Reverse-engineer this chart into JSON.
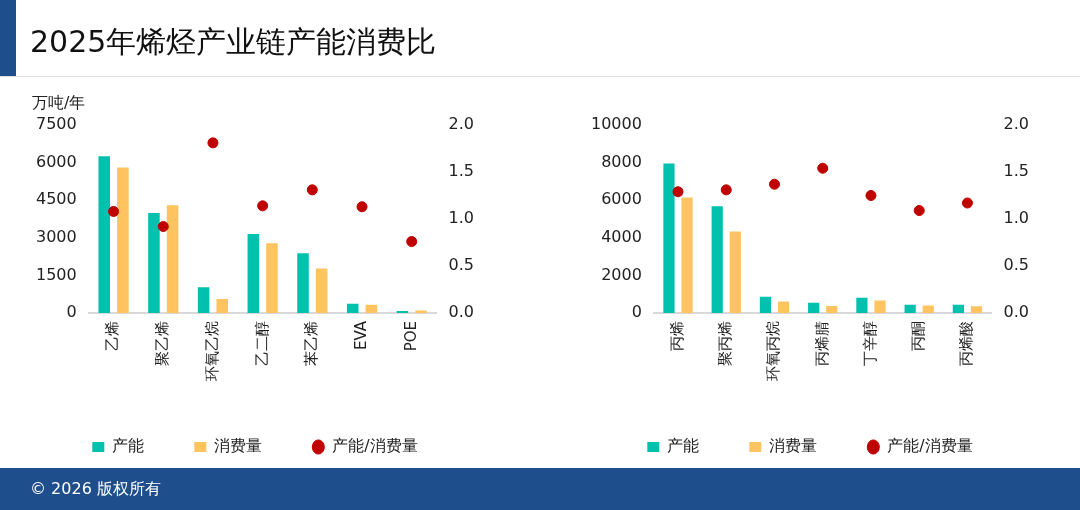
{
  "chart_data": [
    {
      "type": "bar",
      "title": "2025年烯烃产业链产能消费比",
      "ylabel": "万吨/年",
      "categories": [
        "乙烯",
        "聚乙烯",
        "环氧乙烷",
        "乙二醇",
        "苯乙烯",
        "EVA",
        "POE"
      ],
      "series": [
        {
          "name": "产能",
          "color": "#00c0ae",
          "values": [
            6250,
            3990,
            1030,
            3150,
            2380,
            370,
            80
          ]
        },
        {
          "name": "消费量",
          "color": "#ffc35f",
          "values": [
            5800,
            4300,
            560,
            2780,
            1780,
            330,
            100
          ]
        },
        {
          "name": "产能/消费量",
          "type": "scatter",
          "axis": "y2",
          "color": "#c00000",
          "marker": "circle",
          "values": [
            1.08,
            0.92,
            1.81,
            1.14,
            1.31,
            1.13,
            0.76
          ]
        }
      ],
      "ylim": [
        0,
        7500
      ],
      "yticks": [
        0,
        1500,
        3000,
        4500,
        6000,
        7500
      ],
      "y2lim": [
        0,
        2
      ],
      "y2ticks": [
        {
          "value": 0,
          "label": "0.0"
        },
        {
          "value": 0.5,
          "label": "0.5"
        },
        {
          "value": 1,
          "label": "1.0"
        },
        {
          "value": 1.5,
          "label": "1.5"
        },
        {
          "value": 2,
          "label": "2.0"
        }
      ],
      "legend": "bottom",
      "grid": false,
      "annotations": [
        "© 2026 版权所有"
      ]
    },
    {
      "type": "bar",
      "categories": [
        "丙烯",
        "聚丙烯",
        "环氧丙烷",
        "丙烯腈",
        "丁辛醇",
        "丙酮",
        "丙烯酸"
      ],
      "series": [
        {
          "name": "产能",
          "color": "#00c0ae",
          "values": [
            7950,
            5680,
            870,
            550,
            810,
            440,
            440
          ]
        },
        {
          "name": "消费量",
          "color": "#ffc35f",
          "values": [
            6150,
            4330,
            610,
            370,
            660,
            400,
            360
          ]
        },
        {
          "name": "产能/消费量",
          "type": "scatter",
          "axis": "y2",
          "color": "#c00000",
          "marker": "circle",
          "values": [
            1.29,
            1.31,
            1.37,
            1.54,
            1.25,
            1.09,
            1.17
          ]
        }
      ],
      "ylim": [
        0,
        10000
      ],
      "yticks": [
        0,
        2000,
        4000,
        6000,
        8000,
        10000
      ],
      "y2lim": [
        0,
        2
      ],
      "y2ticks": [
        {
          "value": 0,
          "label": "0.0"
        },
        {
          "value": 0.5,
          "label": "0.5"
        },
        {
          "value": 1,
          "label": "1.0"
        },
        {
          "value": 1.5,
          "label": "1.5"
        },
        {
          "value": 2,
          "label": "2.0"
        }
      ],
      "legend": "bottom",
      "grid": false
    }
  ]
}
